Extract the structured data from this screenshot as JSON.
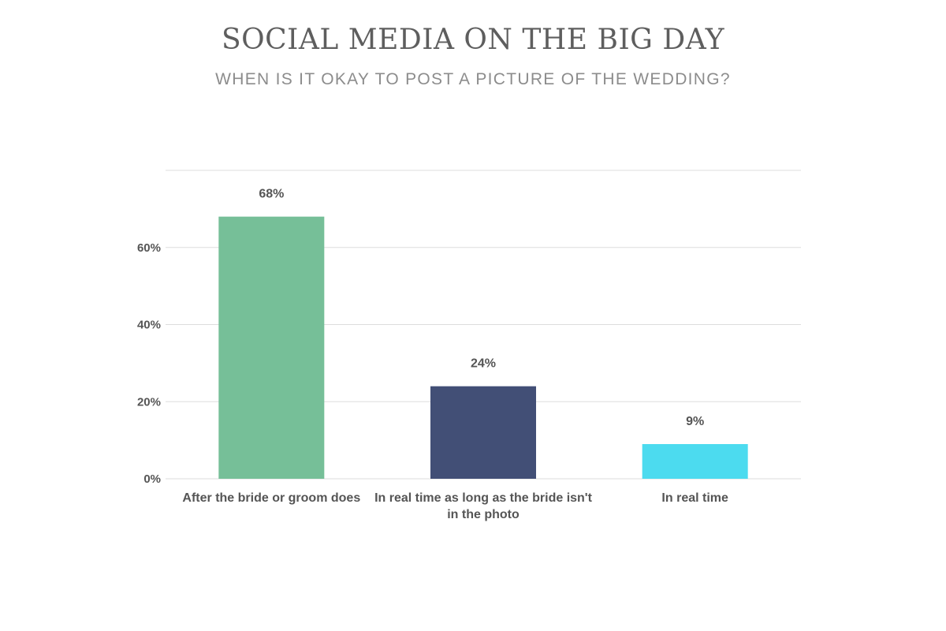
{
  "chart_data": {
    "type": "bar",
    "title": "SOCIAL MEDIA ON THE BIG DAY",
    "subtitle": "WHEN IS IT OKAY TO POST A PICTURE OF THE WEDDING?",
    "categories": [
      [
        "After the bride or groom does"
      ],
      [
        "In real time as long as the bride isn't",
        "in the photo"
      ],
      [
        "In real time"
      ]
    ],
    "values": [
      68,
      24,
      9
    ],
    "value_labels": [
      "68%",
      "24%",
      "9%"
    ],
    "colors": [
      "#76bf98",
      "#424f76",
      "#4cdbef"
    ],
    "yticks": [
      {
        "value": 0,
        "label": "0%"
      },
      {
        "value": 20,
        "label": "20%"
      },
      {
        "value": 40,
        "label": "40%"
      },
      {
        "value": 60,
        "label": "60%"
      }
    ],
    "ylim": [
      0,
      80
    ],
    "grid": true,
    "legend": "none",
    "grid_color": "#dddddd"
  }
}
